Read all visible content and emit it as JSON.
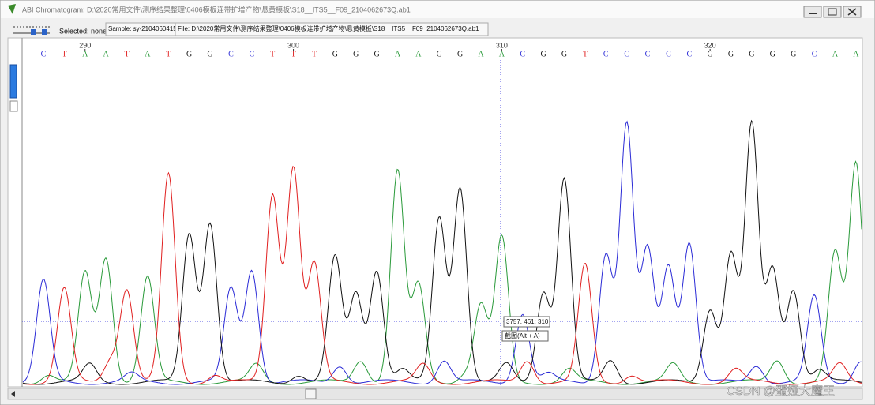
{
  "window": {
    "title": "ABI Chromatogram: D:\\2020常用文件\\测序结果整理\\0406模板连带扩增产物\\悬黄模板\\S18__ITS5__F09_2104062673Q.ab1"
  },
  "toolbar": {
    "selected": "Selected: none",
    "sample": "Sample: sy-2104060415",
    "file": "File: D:\\2020常用文件\\测序结果整理\\0406模板连带扩增产物\\悬黄模板\\S18__ITS5__F09_2104062673Q.ab1"
  },
  "chromatogram": {
    "positions": [
      290,
      300,
      310,
      320
    ],
    "bases": [
      "C",
      "T",
      "A",
      "A",
      "T",
      "A",
      "T",
      "G",
      "G",
      "C",
      "C",
      "T",
      "T",
      "T",
      "G",
      "G",
      "G",
      "A",
      "A",
      "G",
      "G",
      "A",
      "A",
      "C",
      "G",
      "G",
      "T",
      "C",
      "C",
      "C",
      "C",
      "C",
      "G",
      "G",
      "G",
      "G",
      "G",
      "C",
      "A",
      "A"
    ],
    "base_colors": {
      "A": "#2a9a3a",
      "C": "#2b2bd6",
      "G": "#111111",
      "T": "#e02020"
    }
  },
  "tooltip": {
    "coords": "3757, 461: 310",
    "hint": "截图(Alt + A)"
  },
  "watermark": "CSDN @蛋娅大魔王"
}
